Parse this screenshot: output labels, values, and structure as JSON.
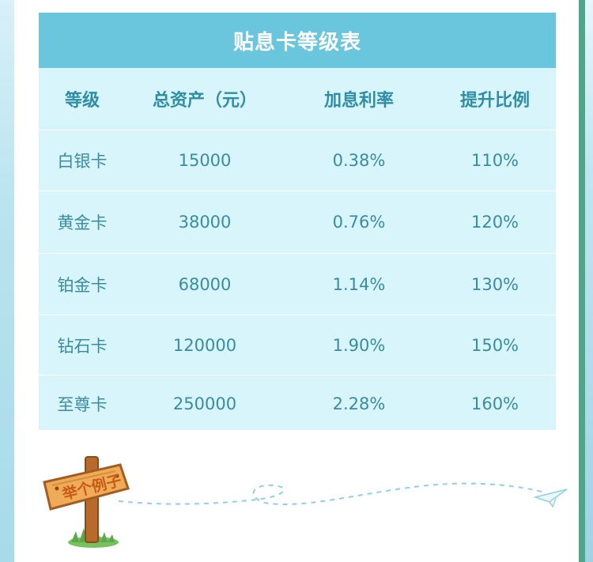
{
  "table": {
    "title": "贴息卡等级表",
    "headers": [
      "等级",
      "总资产（元）",
      "加息利率",
      "提升比例"
    ],
    "rows": [
      {
        "level": "白银卡",
        "assets": "15000",
        "rate": "0.38%",
        "boost": "110%"
      },
      {
        "level": "黄金卡",
        "assets": "38000",
        "rate": "0.76%",
        "boost": "120%"
      },
      {
        "level": "铂金卡",
        "assets": "68000",
        "rate": "1.14%",
        "boost": "130%"
      },
      {
        "level": "钻石卡",
        "assets": "120000",
        "rate": "1.90%",
        "boost": "150%"
      },
      {
        "level": "至尊卡",
        "assets": "250000",
        "rate": "2.28%",
        "boost": "160%"
      }
    ]
  },
  "sign": {
    "label": "举个例子"
  },
  "icons": {
    "sign": "wooden-signpost-icon",
    "plane": "paper-plane-icon"
  },
  "colors": {
    "title_bg": "#69c6dd",
    "table_bg": "#d7f5fb",
    "text": "#3a8ca0",
    "header_text": "#2f8ea6"
  }
}
